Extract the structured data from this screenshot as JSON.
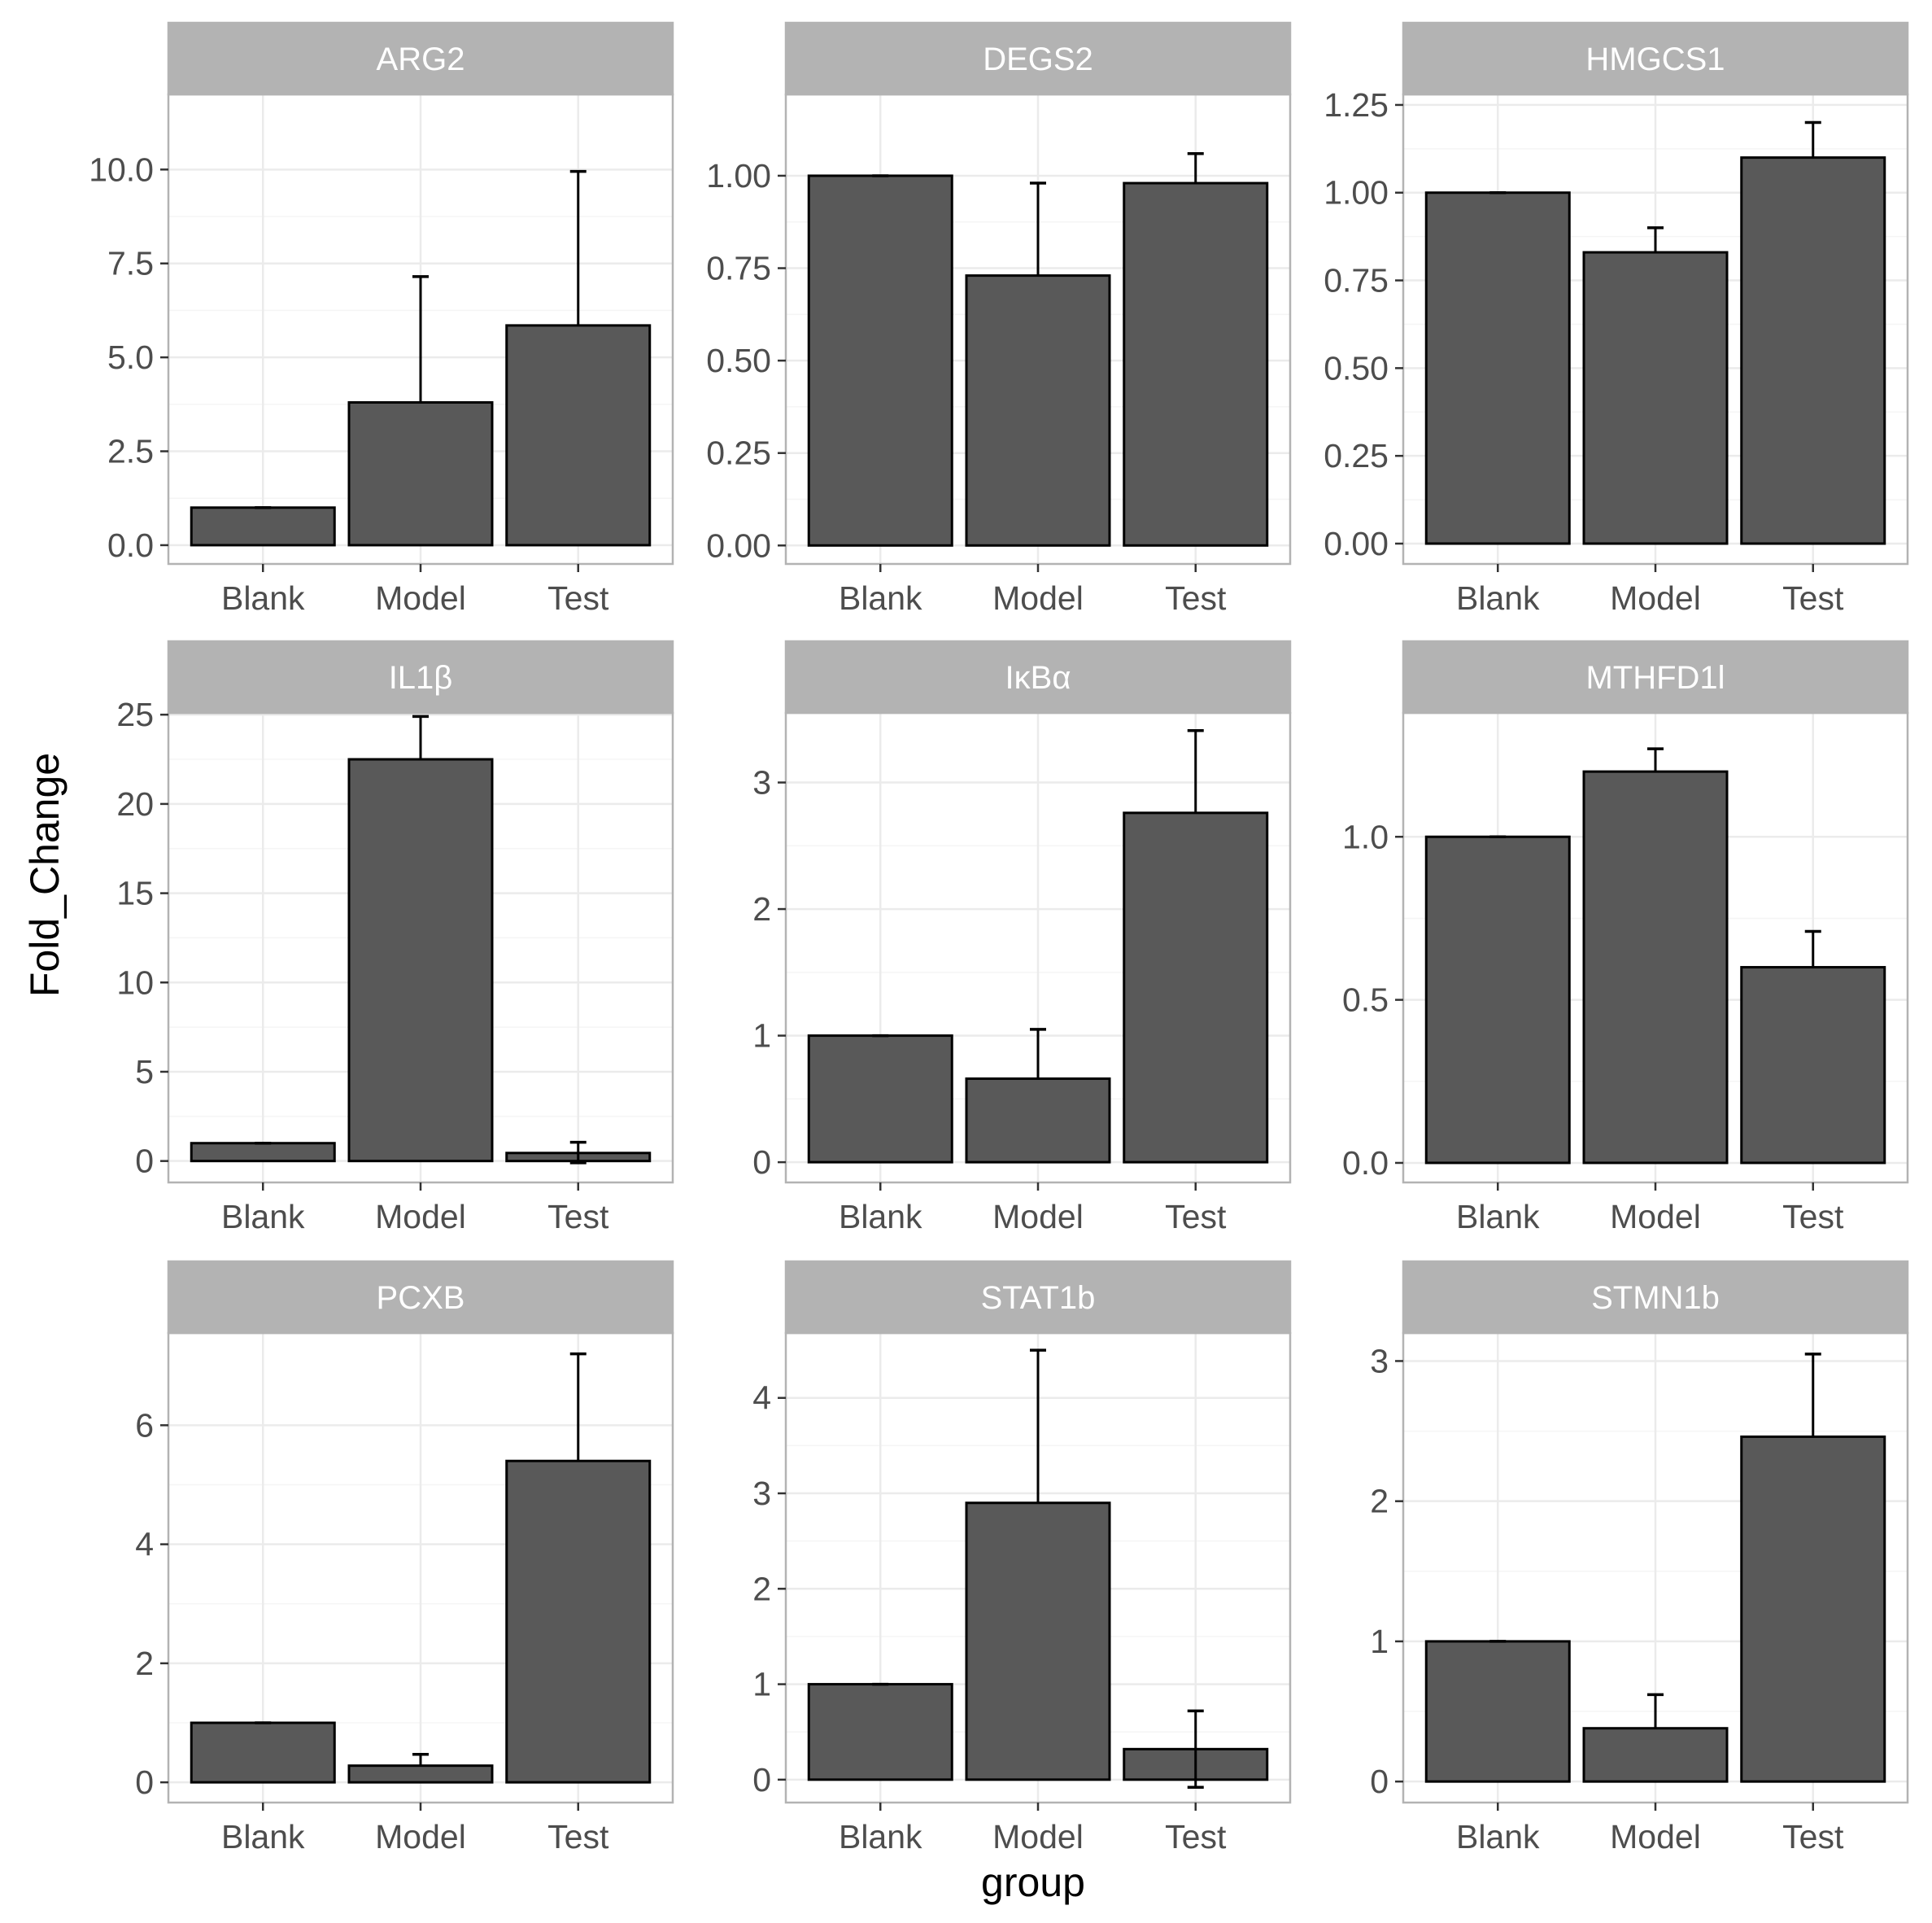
{
  "chart_data": {
    "type": "bar",
    "layout": "facet-grid-3x3",
    "xlabel": "group",
    "ylabel": "Fold_Change",
    "categories": [
      "Blank",
      "Model",
      "Test"
    ],
    "colors": {
      "bar": "#595959",
      "bar_outline": "#000000",
      "strip": "#b3b3b3",
      "strip_text": "#ffffff",
      "grid_major": "#ebebeb",
      "grid_minor": "#f5f5f5",
      "panel_border": "#b3b3b3",
      "tick_text": "#4d4d4d"
    },
    "panels": [
      {
        "title": "ARG2",
        "values": [
          1.0,
          3.8,
          5.85
        ],
        "error_upper": [
          1.0,
          7.15,
          9.95
        ],
        "error_lower": [
          null,
          null,
          null
        ],
        "ylim": [
          -0.5,
          12.0
        ],
        "yticks": [
          0,
          2.5,
          5,
          7.5,
          10
        ],
        "ytick_labels": [
          "0.0",
          "2.5",
          "5.0",
          "7.5",
          "10.0"
        ]
      },
      {
        "title": "DEGS2",
        "values": [
          1.0,
          0.73,
          0.98
        ],
        "error_upper": [
          1.0,
          0.98,
          1.06
        ],
        "error_lower": [
          null,
          null,
          null
        ],
        "ylim": [
          -0.05,
          1.22
        ],
        "yticks": [
          0,
          0.25,
          0.5,
          0.75,
          1.0
        ],
        "ytick_labels": [
          "0.00",
          "0.25",
          "0.50",
          "0.75",
          "1.00"
        ]
      },
      {
        "title": "HMGCS1",
        "values": [
          1.0,
          0.83,
          1.1
        ],
        "error_upper": [
          1.0,
          0.9,
          1.2
        ],
        "error_lower": [
          null,
          null,
          null
        ],
        "ylim": [
          -0.058,
          1.28
        ],
        "yticks": [
          0,
          0.25,
          0.5,
          0.75,
          1.0,
          1.25
        ],
        "ytick_labels": [
          "0.00",
          "0.25",
          "0.50",
          "0.75",
          "1.00",
          "1.25"
        ]
      },
      {
        "title": "IL1β",
        "values": [
          1.0,
          22.5,
          0.45
        ],
        "error_upper": [
          1.0,
          24.9,
          1.05
        ],
        "error_lower": [
          null,
          null,
          -0.1
        ],
        "ylim": [
          -1.2,
          25.1
        ],
        "yticks": [
          0,
          5,
          10,
          15,
          20,
          25
        ],
        "ytick_labels": [
          "0",
          "5",
          "10",
          "15",
          "20",
          "25"
        ]
      },
      {
        "title": "IκBα",
        "values": [
          1.0,
          0.66,
          2.76
        ],
        "error_upper": [
          1.0,
          1.05,
          3.41
        ],
        "error_lower": [
          null,
          null,
          null
        ],
        "ylim": [
          -0.16,
          3.55
        ],
        "yticks": [
          0,
          1,
          2,
          3
        ],
        "ytick_labels": [
          "0",
          "1",
          "2",
          "3"
        ]
      },
      {
        "title": "MTHFD1l",
        "values": [
          1.0,
          1.2,
          0.6
        ],
        "error_upper": [
          1.0,
          1.27,
          0.71
        ],
        "error_lower": [
          null,
          null,
          null
        ],
        "ylim": [
          -0.06,
          1.38
        ],
        "yticks": [
          0,
          0.5,
          1.0
        ],
        "ytick_labels": [
          "0.0",
          "0.5",
          "1.0"
        ]
      },
      {
        "title": "PCXB",
        "values": [
          1.0,
          0.28,
          5.4
        ],
        "error_upper": [
          1.0,
          0.47,
          7.2
        ],
        "error_lower": [
          null,
          null,
          null
        ],
        "ylim": [
          -0.34,
          7.55
        ],
        "yticks": [
          0,
          2,
          4,
          6
        ],
        "ytick_labels": [
          "0",
          "2",
          "4",
          "6"
        ]
      },
      {
        "title": "STAT1b",
        "values": [
          1.0,
          2.9,
          0.32
        ],
        "error_upper": [
          1.0,
          4.5,
          0.72
        ],
        "error_lower": [
          null,
          null,
          -0.08
        ],
        "ylim": [
          -0.24,
          4.68
        ],
        "yticks": [
          0,
          1,
          2,
          3,
          4
        ],
        "ytick_labels": [
          "0",
          "1",
          "2",
          "3",
          "4"
        ]
      },
      {
        "title": "STMN1b",
        "values": [
          1.0,
          0.38,
          2.46
        ],
        "error_upper": [
          1.0,
          0.62,
          3.05
        ],
        "error_lower": [
          null,
          null,
          null
        ],
        "ylim": [
          -0.15,
          3.2
        ],
        "yticks": [
          0,
          1,
          2,
          3
        ],
        "ytick_labels": [
          "0",
          "1",
          "2",
          "3"
        ]
      }
    ]
  }
}
